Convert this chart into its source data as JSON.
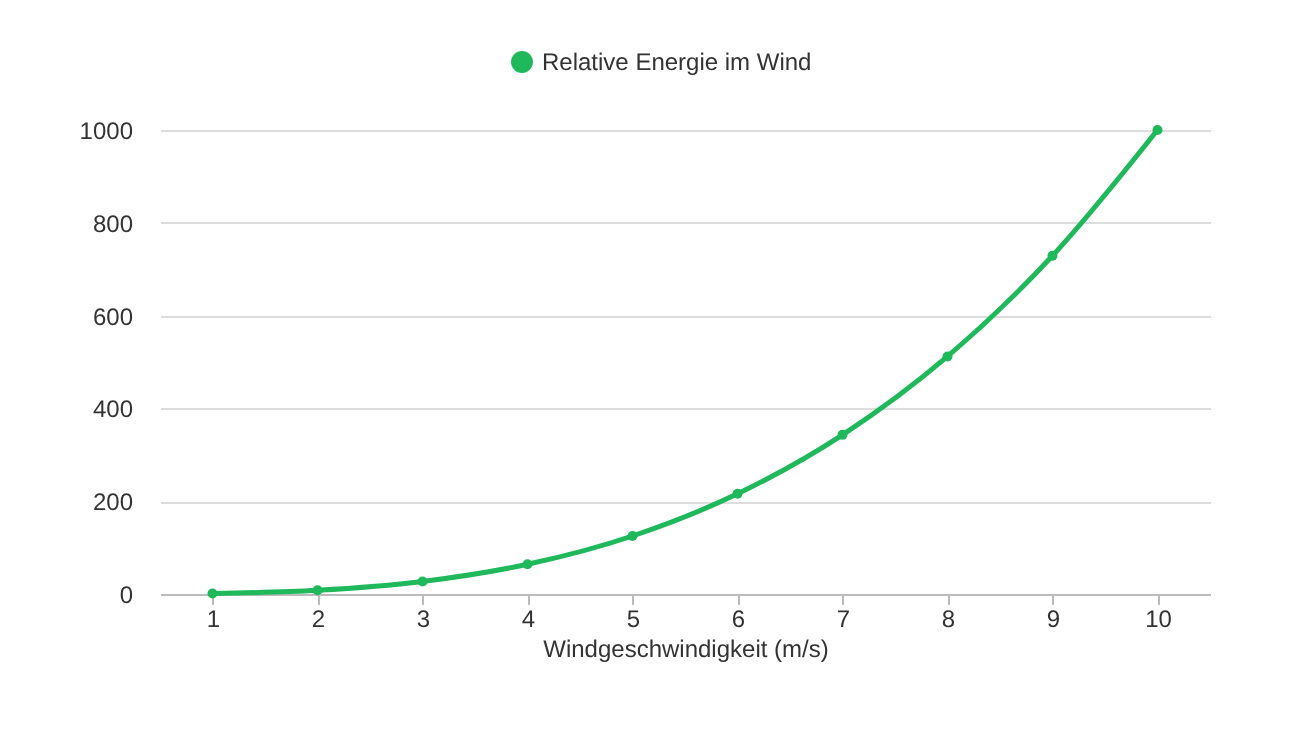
{
  "chart_data": {
    "type": "line",
    "xlabel": "Windgeschwindigkeit (m/s)",
    "categories": [
      "1",
      "2",
      "3",
      "4",
      "5",
      "6",
      "7",
      "8",
      "9",
      "10"
    ],
    "series": [
      {
        "name": "Relative Energie im Wind",
        "color": "#1fb85a",
        "values": [
          1,
          8,
          27,
          64,
          125,
          216,
          343,
          512,
          729,
          1000
        ]
      }
    ],
    "ylim": [
      0,
      1000
    ],
    "yticks": [
      0,
      200,
      400,
      600,
      800,
      1000
    ],
    "grid": "y",
    "legend": "top",
    "marker": "circle"
  }
}
